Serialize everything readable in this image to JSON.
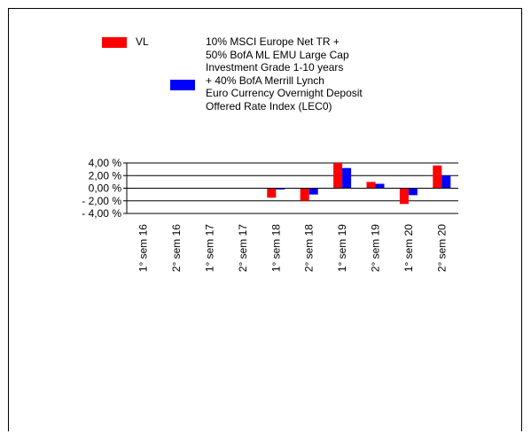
{
  "chart_data": {
    "type": "bar",
    "title": "",
    "xlabel": "",
    "ylabel": "",
    "categories": [
      "1° sem 16",
      "2° sem 16",
      "1° sem 17",
      "2° sem 17",
      "1° sem 18",
      "2° sem 18",
      "1° sem 19",
      "2° sem 19",
      "1° sem 20",
      "2° sem 20"
    ],
    "series": [
      {
        "name": "VL",
        "color": "#ff0000",
        "values": [
          null,
          null,
          null,
          null,
          -1.5,
          -2.0,
          4.0,
          1.0,
          -2.5,
          3.6
        ]
      },
      {
        "name": "10% MSCI Europe Net TR +\n50% BofA ML EMU Large Cap\nInvestment Grade 1-10 years\n+ 40% BofA Merrill Lynch\nEuro Currency Overnight Deposit\nOffered Rate Index (LEC0)",
        "color": "#0000ff",
        "values": [
          null,
          null,
          null,
          null,
          -0.2,
          -1.0,
          3.2,
          0.7,
          -1.1,
          2.0
        ]
      }
    ],
    "ylim": [
      -4,
      4
    ],
    "yticks": [
      4,
      2,
      0,
      -2,
      -4
    ],
    "ytick_labels": [
      "4,00 %",
      "2,00 %",
      "0,00 %",
      "- 2,00 %",
      "- 4,00 %"
    ],
    "grid": true,
    "legend_position": "top"
  }
}
